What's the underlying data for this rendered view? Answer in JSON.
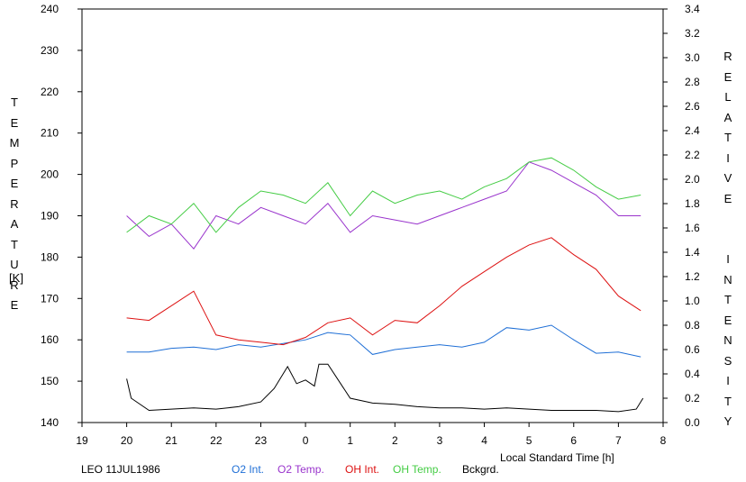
{
  "chart_data": {
    "type": "line",
    "station": "LEO 11JUL1986",
    "xlabel": "Local Standard Time [h]",
    "ylabel_left": "TEMPERATURE",
    "ylabel_left_unit": "[K]",
    "ylabel_right": "RELATIVE  INTENSITY",
    "x_range": [
      19,
      32
    ],
    "x_tick_labels": [
      "19",
      "20",
      "21",
      "22",
      "23",
      "0",
      "1",
      "2",
      "3",
      "4",
      "5",
      "6",
      "7",
      "8"
    ],
    "y_left_range": [
      140,
      240
    ],
    "y_left_ticks": [
      "140",
      "150",
      "160",
      "170",
      "180",
      "190",
      "200",
      "210",
      "220",
      "230",
      "240"
    ],
    "y_right_range": [
      0.0,
      3.4
    ],
    "y_right_ticks": [
      "0.0",
      "0.2",
      "0.4",
      "0.6",
      "0.8",
      "1.0",
      "1.2",
      "1.4",
      "1.6",
      "1.8",
      "2.0",
      "2.2",
      "2.4",
      "2.6",
      "2.8",
      "3.0",
      "3.2",
      "3.4"
    ],
    "grid": false,
    "legend_position": "bottom",
    "series": [
      {
        "name": "O2 Int.",
        "color": "#1f6fd6",
        "axis": "right",
        "x": [
          20.0,
          20.5,
          21.0,
          21.5,
          22.0,
          22.5,
          23.0,
          23.5,
          24.0,
          24.5,
          25.0,
          25.5,
          26.0,
          26.5,
          27.0,
          27.5,
          28.0,
          28.5,
          29.0,
          29.5,
          30.0,
          30.5,
          31.0,
          31.5
        ],
        "y": [
          0.58,
          0.58,
          0.61,
          0.62,
          0.6,
          0.64,
          0.62,
          0.65,
          0.68,
          0.74,
          0.72,
          0.56,
          0.6,
          0.62,
          0.64,
          0.62,
          0.66,
          0.78,
          0.76,
          0.8,
          0.68,
          0.57,
          0.58,
          0.54
        ]
      },
      {
        "name": "O2 Temp.",
        "color": "#9933cc",
        "axis": "left",
        "x": [
          20.0,
          20.5,
          21.0,
          21.5,
          22.0,
          22.5,
          23.0,
          23.5,
          24.0,
          24.5,
          25.0,
          25.5,
          26.0,
          26.5,
          27.0,
          27.5,
          28.0,
          28.5,
          29.0,
          29.5,
          30.0,
          30.5,
          31.0,
          31.5
        ],
        "y": [
          190,
          185,
          188,
          182,
          190,
          188,
          192,
          190,
          188,
          193,
          186,
          190,
          189,
          188,
          190,
          192,
          194,
          196,
          203,
          201,
          198,
          195,
          190,
          190
        ]
      },
      {
        "name": "OH Int.",
        "color": "#dd1111",
        "axis": "right",
        "x": [
          20.0,
          20.5,
          21.0,
          21.5,
          22.0,
          22.5,
          23.0,
          23.5,
          24.0,
          24.5,
          25.0,
          25.5,
          26.0,
          26.5,
          27.0,
          27.5,
          28.0,
          28.5,
          29.0,
          29.5,
          30.0,
          30.5,
          31.0,
          31.5
        ],
        "y": [
          0.86,
          0.84,
          0.96,
          1.08,
          0.72,
          0.68,
          0.66,
          0.64,
          0.7,
          0.82,
          0.86,
          0.72,
          0.84,
          0.82,
          0.96,
          1.12,
          1.24,
          1.36,
          1.46,
          1.52,
          1.38,
          1.26,
          1.04,
          0.92
        ]
      },
      {
        "name": "OH Temp.",
        "color": "#44cc44",
        "axis": "left",
        "x": [
          20.0,
          20.5,
          21.0,
          21.5,
          22.0,
          22.5,
          23.0,
          23.5,
          24.0,
          24.5,
          25.0,
          25.5,
          26.0,
          26.5,
          27.0,
          27.5,
          28.0,
          28.5,
          29.0,
          29.5,
          30.0,
          30.5,
          31.0,
          31.5
        ],
        "y": [
          186,
          190,
          188,
          193,
          186,
          192,
          196,
          195,
          193,
          198,
          190,
          196,
          193,
          195,
          196,
          194,
          197,
          199,
          203,
          204,
          201,
          197,
          194,
          195
        ]
      },
      {
        "name": "Bckgrd.",
        "color": "#000000",
        "axis": "right",
        "x": [
          20.0,
          20.1,
          20.5,
          21.0,
          21.5,
          22.0,
          22.5,
          23.0,
          23.3,
          23.6,
          23.8,
          24.0,
          24.2,
          24.3,
          24.5,
          25.0,
          25.5,
          26.0,
          26.5,
          27.0,
          27.5,
          28.0,
          28.5,
          29.0,
          29.5,
          30.0,
          30.5,
          31.0,
          31.4,
          31.55
        ],
        "y": [
          0.36,
          0.2,
          0.1,
          0.11,
          0.12,
          0.11,
          0.13,
          0.17,
          0.28,
          0.46,
          0.32,
          0.35,
          0.3,
          0.48,
          0.48,
          0.2,
          0.16,
          0.15,
          0.13,
          0.12,
          0.12,
          0.11,
          0.12,
          0.11,
          0.1,
          0.1,
          0.1,
          0.09,
          0.11,
          0.2
        ]
      }
    ]
  }
}
